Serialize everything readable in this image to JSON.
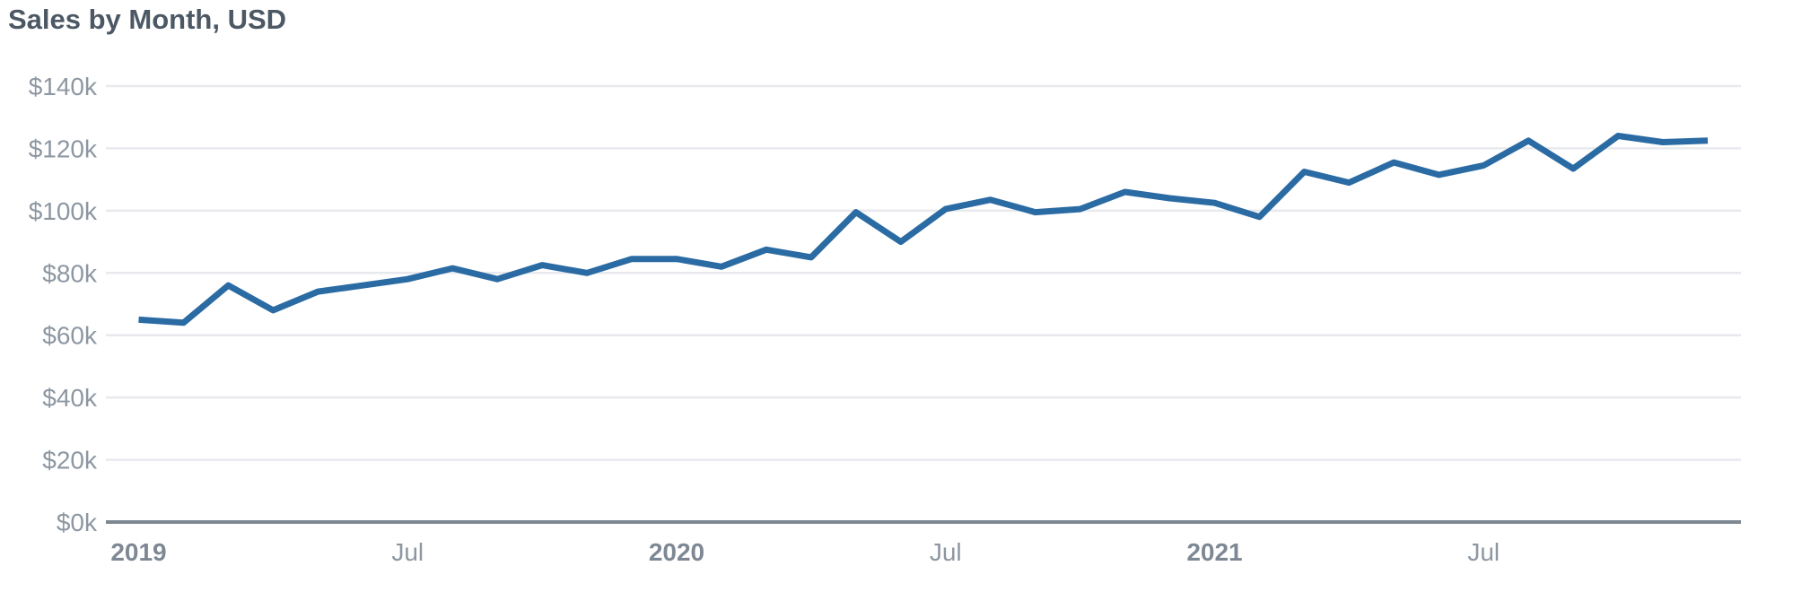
{
  "header": {
    "title": "Sales by Month, USD"
  },
  "colors": {
    "line": "#2b6ba3",
    "gridline": "#e7e9ed",
    "zero_axis": "#7d8893",
    "tick_label": "#8d97a2",
    "year_label": "#7e8894",
    "title": "#4c5864",
    "background": "#ffffff"
  },
  "chart_data": {
    "type": "line",
    "title": "Sales by Month, USD",
    "unit": "USD thousands",
    "x": [
      "2019-01",
      "2019-02",
      "2019-03",
      "2019-04",
      "2019-05",
      "2019-06",
      "2019-07",
      "2019-08",
      "2019-09",
      "2019-10",
      "2019-11",
      "2019-12",
      "2020-01",
      "2020-02",
      "2020-03",
      "2020-04",
      "2020-05",
      "2020-06",
      "2020-07",
      "2020-08",
      "2020-09",
      "2020-10",
      "2020-11",
      "2020-12",
      "2021-01",
      "2021-02",
      "2021-03",
      "2021-04",
      "2021-05",
      "2021-06",
      "2021-07",
      "2021-08",
      "2021-09",
      "2021-10",
      "2021-11",
      "2021-12"
    ],
    "series": [
      {
        "name": "Sales",
        "values_usd_thousands": [
          65,
          64,
          76,
          68,
          74,
          76,
          78,
          81.5,
          78,
          82.5,
          80,
          84.5,
          84.5,
          82,
          87.5,
          85,
          99.5,
          90,
          100.5,
          103.5,
          99.5,
          100.5,
          106,
          104,
          102.5,
          98,
          112.5,
          109,
          115.5,
          111.5,
          114.5,
          122.5,
          113.5,
          124,
          122,
          122.5
        ]
      }
    ],
    "xticks": [
      {
        "month_index": 0,
        "label": "2019",
        "bold": true
      },
      {
        "month_index": 6,
        "label": "Jul",
        "bold": false
      },
      {
        "month_index": 12,
        "label": "2020",
        "bold": true
      },
      {
        "month_index": 18,
        "label": "Jul",
        "bold": false
      },
      {
        "month_index": 24,
        "label": "2021",
        "bold": true
      },
      {
        "month_index": 30,
        "label": "Jul",
        "bold": false
      }
    ],
    "yticks": [
      {
        "value_usd_thousands": 0,
        "label": "$0k"
      },
      {
        "value_usd_thousands": 20,
        "label": "$20k"
      },
      {
        "value_usd_thousands": 40,
        "label": "$40k"
      },
      {
        "value_usd_thousands": 60,
        "label": "$60k"
      },
      {
        "value_usd_thousands": 80,
        "label": "$80k"
      },
      {
        "value_usd_thousands": 100,
        "label": "$100k"
      },
      {
        "value_usd_thousands": 120,
        "label": "$120k"
      },
      {
        "value_usd_thousands": 140,
        "label": "$140k"
      }
    ],
    "ylim_usd_thousands": [
      0,
      140
    ],
    "grid": "horizontal-only",
    "legend": "none"
  }
}
